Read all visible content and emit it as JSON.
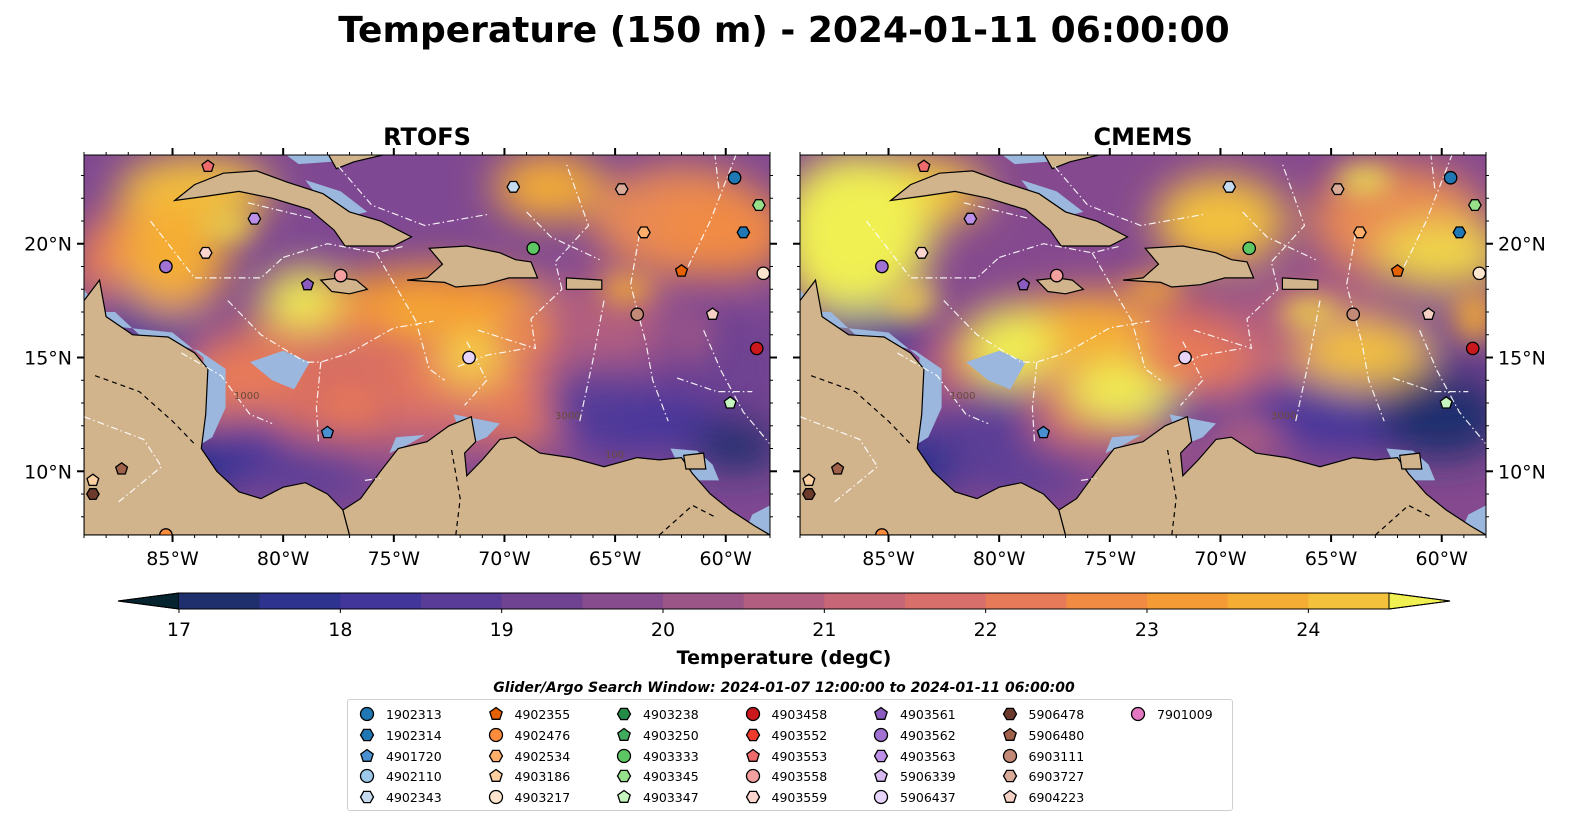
{
  "page": {
    "title": "Temperature (150 m) - 2024-01-11 06:00:00",
    "search_window": "Glider/Argo Search Window: 2024-01-07 12:00:00 to 2024-01-11 06:00:00"
  },
  "colors": {
    "land": "#d2b48c",
    "shelf": "#9bb7dd",
    "cold": "#062330",
    "warm": "#f0f052",
    "colormap": [
      "#062330",
      "#0d2c4a",
      "#1f2f6e",
      "#2f3390",
      "#43369b",
      "#583c97",
      "#704392",
      "#874c8d",
      "#9c5587",
      "#b25e80",
      "#c76676",
      "#d96f6b",
      "#e77a58",
      "#f18b44",
      "#f59b36",
      "#f5ad34",
      "#f3c13c",
      "#f0d648",
      "#f0f052"
    ]
  },
  "maps": [
    {
      "title": "RTOFS",
      "contour_labels": [
        "1000",
        "3000",
        "100"
      ]
    },
    {
      "title": "CMEMS",
      "contour_labels": [
        "1000",
        "3000"
      ]
    }
  ],
  "chart_data": {
    "type": "heatmap",
    "title": "Temperature (150 m) - 2024-01-11 06:00:00",
    "panels": [
      "RTOFS",
      "CMEMS"
    ],
    "x_range": [
      -89,
      -58
    ],
    "y_range": [
      7.2,
      23.9
    ],
    "x_ticks": [
      -85,
      -80,
      -75,
      -70,
      -65,
      -60
    ],
    "x_tick_labels": [
      "85°W",
      "80°W",
      "75°W",
      "70°W",
      "65°W",
      "60°W"
    ],
    "y_ticks": [
      10,
      15,
      20
    ],
    "y_tick_labels": [
      "10°N",
      "15°N",
      "20°N"
    ],
    "colorbar": {
      "label": "Temperature (degC)",
      "min": 17,
      "max": 24.5,
      "step": 0.5,
      "extend": "both",
      "tick_values": [
        17,
        18,
        19,
        20,
        21,
        22,
        23,
        24
      ],
      "tick_labels": [
        "17",
        "18",
        "19",
        "20",
        "21",
        "22",
        "23",
        "24"
      ]
    },
    "platforms": [
      {
        "id": "1902313",
        "marker": "circle",
        "color": "#1f77b4",
        "lon": -59.6,
        "lat": 22.9
      },
      {
        "id": "1902314",
        "marker": "hexagon",
        "color": "#1f77b4",
        "lon": -59.2,
        "lat": 20.5
      },
      {
        "id": "4901720",
        "marker": "pentagon",
        "color": "#4a8fd0",
        "lon": -78.0,
        "lat": 11.7
      },
      {
        "id": "4902110",
        "marker": "circle",
        "color": "#9ecae9",
        "lon": null,
        "lat": null
      },
      {
        "id": "4902343",
        "marker": "hexagon",
        "color": "#c6dbef",
        "lon": -69.6,
        "lat": 22.5
      },
      {
        "id": "4902355",
        "marker": "pentagon",
        "color": "#e66101",
        "lon": -62.0,
        "lat": 18.8
      },
      {
        "id": "4902476",
        "marker": "circle",
        "color": "#fd8d3c",
        "lon": -85.3,
        "lat": 7.2
      },
      {
        "id": "4902534",
        "marker": "hexagon",
        "color": "#fdae6b",
        "lon": -63.7,
        "lat": 20.5
      },
      {
        "id": "4903186",
        "marker": "pentagon",
        "color": "#fdd0a2",
        "lon": -88.6,
        "lat": 9.6
      },
      {
        "id": "4903217",
        "marker": "circle",
        "color": "#fee6ce",
        "lon": -58.3,
        "lat": 18.7
      },
      {
        "id": "4903238",
        "marker": "hexagon",
        "color": "#238b45",
        "lon": null,
        "lat": null
      },
      {
        "id": "4903250",
        "marker": "pentagon",
        "color": "#41ab5d",
        "lon": null,
        "lat": null
      },
      {
        "id": "4903333",
        "marker": "circle",
        "color": "#5dc863",
        "lon": -68.7,
        "lat": 19.8
      },
      {
        "id": "4903345",
        "marker": "hexagon",
        "color": "#98df8a",
        "lon": -58.5,
        "lat": 21.7
      },
      {
        "id": "4903347",
        "marker": "pentagon",
        "color": "#c7f5c0",
        "lon": -59.8,
        "lat": 13.0
      },
      {
        "id": "4903458",
        "marker": "circle",
        "color": "#cb181d",
        "lon": -58.6,
        "lat": 15.4
      },
      {
        "id": "4903552",
        "marker": "hexagon",
        "color": "#ef3b2c",
        "lon": null,
        "lat": null
      },
      {
        "id": "4903553",
        "marker": "pentagon",
        "color": "#ef6a6a",
        "lon": -83.4,
        "lat": 23.4
      },
      {
        "id": "4903558",
        "marker": "circle",
        "color": "#f4a0a0",
        "lon": -77.4,
        "lat": 18.6
      },
      {
        "id": "4903559",
        "marker": "hexagon",
        "color": "#fcd5cf",
        "lon": -83.5,
        "lat": 19.6
      },
      {
        "id": "4903561",
        "marker": "pentagon",
        "color": "#8c5bbf",
        "lon": -78.9,
        "lat": 18.2
      },
      {
        "id": "4903562",
        "marker": "circle",
        "color": "#a172d4",
        "lon": -85.3,
        "lat": 19.0
      },
      {
        "id": "4903563",
        "marker": "hexagon",
        "color": "#bc8fe8",
        "lon": -81.3,
        "lat": 21.1
      },
      {
        "id": "5906339",
        "marker": "pentagon",
        "color": "#d8b9f2",
        "lon": null,
        "lat": null
      },
      {
        "id": "5906437",
        "marker": "circle",
        "color": "#e7d4fb",
        "lon": -71.6,
        "lat": 15.0
      },
      {
        "id": "5906478",
        "marker": "hexagon",
        "color": "#6b3a2a",
        "lon": -88.6,
        "lat": 9.0
      },
      {
        "id": "5906480",
        "marker": "pentagon",
        "color": "#a0614a",
        "lon": -87.3,
        "lat": 10.1
      },
      {
        "id": "6903111",
        "marker": "circle",
        "color": "#c48a78",
        "lon": -64.0,
        "lat": 16.9
      },
      {
        "id": "6903727",
        "marker": "hexagon",
        "color": "#d9aa98",
        "lon": -64.7,
        "lat": 22.4
      },
      {
        "id": "6904223",
        "marker": "pentagon",
        "color": "#f4d1c4",
        "lon": -60.6,
        "lat": 16.9
      },
      {
        "id": "7901009",
        "marker": "circle",
        "color": "#e377c2",
        "lon": null,
        "lat": null
      }
    ]
  }
}
